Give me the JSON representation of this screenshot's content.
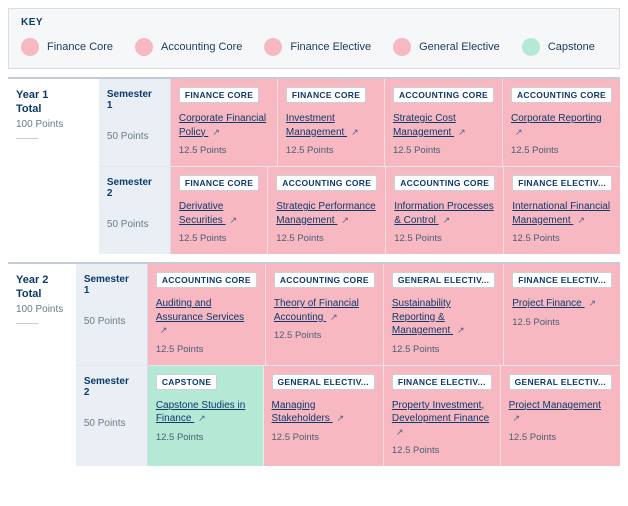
{
  "key_title": "KEY",
  "legend": [
    {
      "label": "Finance Core",
      "dot": "dot-fc"
    },
    {
      "label": "Accounting Core",
      "dot": "dot-ac"
    },
    {
      "label": "Finance Elective",
      "dot": "dot-fe"
    },
    {
      "label": "General Elective",
      "dot": "dot-ge"
    },
    {
      "label": "Capstone",
      "dot": "dot-cap"
    }
  ],
  "colors": {
    "finance_core": "#f7b8c2",
    "accounting_core": "#f7b8c2",
    "finance_elective": "#f7b8c2",
    "general_elective": "#f7b8c2",
    "capstone": "#b6e8d6"
  },
  "years": [
    {
      "title": "Year 1",
      "total_label": "Total",
      "points": "100 Points",
      "semesters": [
        {
          "name": [
            "Semester",
            "1"
          ],
          "points": "50 Points",
          "courses": [
            {
              "cat": "FINANCE CORE",
              "bg": "bg-pink",
              "name": "Corporate Financial Policy",
              "pts": "12.5 Points"
            },
            {
              "cat": "FINANCE CORE",
              "bg": "bg-pink",
              "name": "Investment Management",
              "pts": "12.5 Points"
            },
            {
              "cat": "ACCOUNTING CORE",
              "bg": "bg-pink",
              "name": "Strategic Cost Management",
              "pts": "12.5 Points"
            },
            {
              "cat": "ACCOUNTING CORE",
              "bg": "bg-pink",
              "name": "Corporate Reporting",
              "pts": "12.5 Points"
            }
          ]
        },
        {
          "name": [
            "Semester",
            "2"
          ],
          "points": "50 Points",
          "courses": [
            {
              "cat": "FINANCE CORE",
              "bg": "bg-pink",
              "name": "Derivative Securities",
              "pts": "12.5 Points"
            },
            {
              "cat": "ACCOUNTING CORE",
              "bg": "bg-pink",
              "name": "Strategic Performance Management",
              "pts": "12.5 Points"
            },
            {
              "cat": "ACCOUNTING CORE",
              "bg": "bg-pink",
              "name": "Information Processes & Control",
              "pts": "12.5 Points"
            },
            {
              "cat": "FINANCE ELECTIV...",
              "bg": "bg-pink",
              "name": "International Financial Management",
              "pts": "12.5 Points"
            }
          ]
        }
      ]
    },
    {
      "title": "Year 2",
      "total_label": "Total",
      "points": "100 Points",
      "semesters": [
        {
          "name": [
            "Semester",
            "1"
          ],
          "points": "50 Points",
          "courses": [
            {
              "cat": "ACCOUNTING CORE",
              "bg": "bg-pink",
              "name": "Auditing and Assurance Services",
              "pts": "12.5 Points"
            },
            {
              "cat": "ACCOUNTING CORE",
              "bg": "bg-pink",
              "name": "Theory of Financial Accounting",
              "pts": "12.5 Points"
            },
            {
              "cat": "GENERAL ELECTIV...",
              "bg": "bg-pink",
              "name": "Sustainability Reporting & Management",
              "pts": "12.5 Points"
            },
            {
              "cat": "FINANCE ELECTIV...",
              "bg": "bg-pink",
              "name": "Project Finance",
              "pts": "12.5 Points"
            }
          ]
        },
        {
          "name": [
            "Semester",
            "2"
          ],
          "points": "50 Points",
          "courses": [
            {
              "cat": "CAPSTONE",
              "bg": "bg-mint",
              "name": "Capstone Studies in Finance",
              "pts": "12.5 Points"
            },
            {
              "cat": "GENERAL ELECTIV...",
              "bg": "bg-pink",
              "name": "Managing Stakeholders",
              "pts": "12.5 Points"
            },
            {
              "cat": "FINANCE ELECTIV...",
              "bg": "bg-pink",
              "name": "Property Investment, Development Finance",
              "pts": "12.5 Points"
            },
            {
              "cat": "GENERAL ELECTIV...",
              "bg": "bg-pink",
              "name": "Project Management",
              "pts": "12.5 Points"
            }
          ]
        }
      ]
    }
  ],
  "ext_glyph": "↗"
}
